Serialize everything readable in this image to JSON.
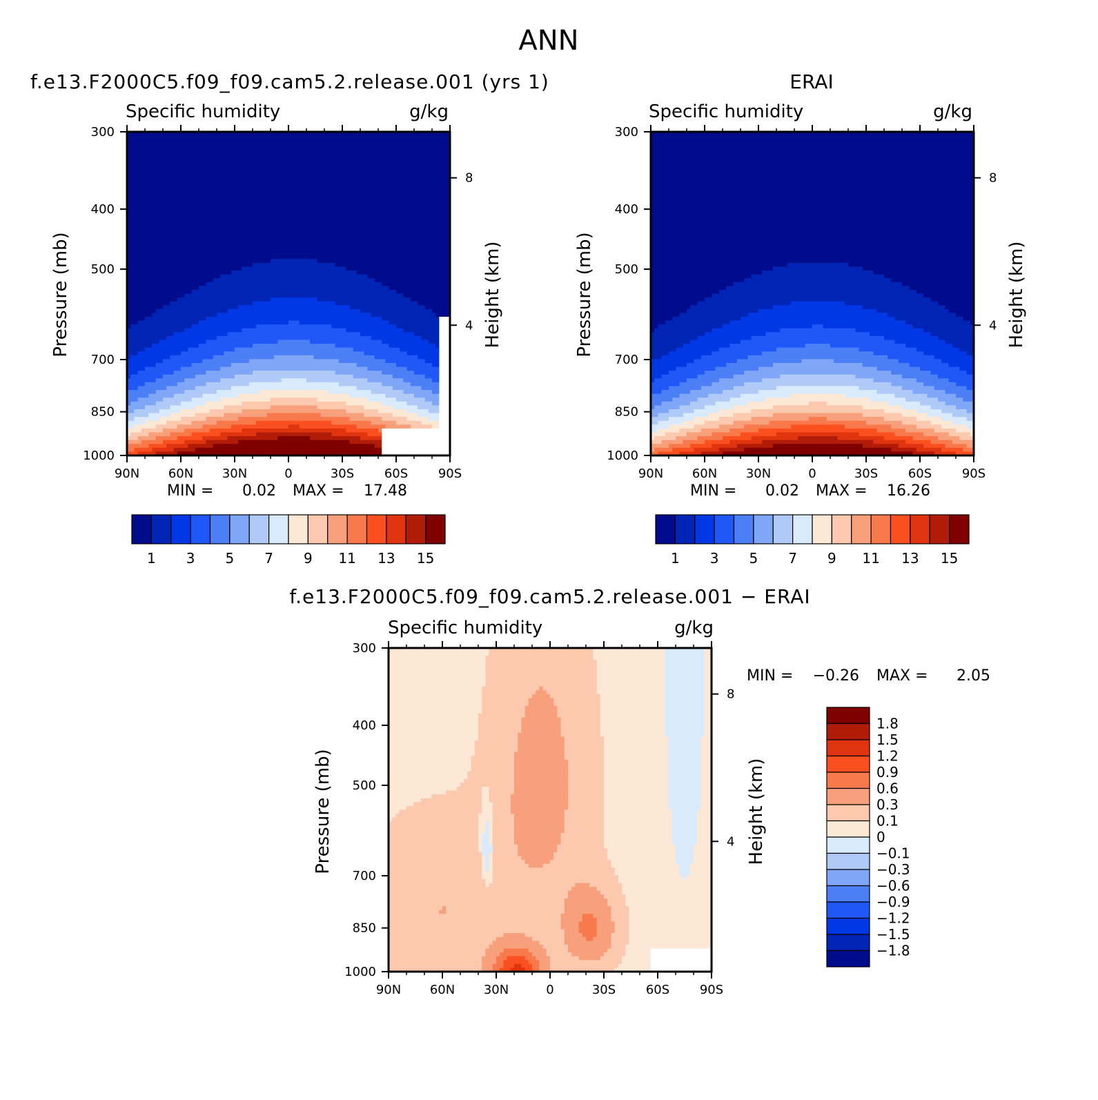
{
  "figure_title": "ANN",
  "colors": {
    "seq": [
      "#000c8c",
      "#0024b4",
      "#0038e6",
      "#2058f8",
      "#4c7ef6",
      "#80a6f8",
      "#b0caf8",
      "#d8eafc",
      "#fde8d6",
      "#fcc8ae",
      "#f8a07c",
      "#f87a4c",
      "#fa5020",
      "#e03410",
      "#b01c08",
      "#800000"
    ],
    "diff": [
      "#000c8c",
      "#0024b4",
      "#0038e6",
      "#2058f8",
      "#4c7ef6",
      "#80a6f8",
      "#b0caf8",
      "#d8eafc",
      "#fde8d6",
      "#fcc8ae",
      "#f8a07c",
      "#f87a4c",
      "#fa5020",
      "#e03410",
      "#b01c08",
      "#800000"
    ]
  },
  "chart_data": [
    {
      "type": "contour",
      "title": "f.e13.F2000C5.f09_f09.cam5.2.release.001 (yrs 1)",
      "left_label": "Specific humidity",
      "right_label": "g/kg",
      "xlabel": "",
      "ylabel": "Pressure (mb)",
      "ylabel_right": "Height (km)",
      "x_ticks": [
        "90N",
        "60N",
        "30N",
        "0",
        "30S",
        "60S",
        "90S"
      ],
      "y_ticks": [
        "300",
        "400",
        "500",
        "700",
        "850",
        "1000"
      ],
      "y_right_ticks": [
        "8",
        "4"
      ],
      "ylim": [
        1000,
        300
      ],
      "y_log": true,
      "min_label": "MIN =",
      "min_value": "0.02",
      "max_label": "MAX =",
      "max_value": "17.48",
      "levels": [
        0,
        1,
        2,
        3,
        4,
        5,
        6,
        7,
        8,
        9,
        10,
        11,
        12,
        13,
        14,
        15
      ],
      "colorbar_labels": [
        "1",
        "3",
        "5",
        "7",
        "9",
        "11",
        "13",
        "15"
      ],
      "peak_lat": -3,
      "peak_value": 17.48
    },
    {
      "type": "contour",
      "title": "ERAI",
      "left_label": "Specific humidity",
      "right_label": "g/kg",
      "xlabel": "",
      "ylabel": "Pressure (mb)",
      "ylabel_right": "Height (km)",
      "x_ticks": [
        "90N",
        "60N",
        "30N",
        "0",
        "30S",
        "60S",
        "90S"
      ],
      "y_ticks": [
        "300",
        "400",
        "500",
        "700",
        "850",
        "1000"
      ],
      "y_right_ticks": [
        "8",
        "4"
      ],
      "ylim": [
        1000,
        300
      ],
      "y_log": true,
      "min_label": "MIN =",
      "min_value": "0.02",
      "max_label": "MAX =",
      "max_value": "16.26",
      "levels": [
        0,
        1,
        2,
        3,
        4,
        5,
        6,
        7,
        8,
        9,
        10,
        11,
        12,
        13,
        14,
        15
      ],
      "colorbar_labels": [
        "1",
        "3",
        "5",
        "7",
        "9",
        "11",
        "13",
        "15"
      ],
      "peak_lat": -3,
      "peak_value": 16.26
    },
    {
      "type": "contour",
      "title": "f.e13.F2000C5.f09_f09.cam5.2.release.001 − ERAI",
      "left_label": "Specific humidity",
      "right_label": "g/kg",
      "xlabel": "",
      "ylabel": "Pressure (mb)",
      "ylabel_right": "Height (km)",
      "x_ticks": [
        "90N",
        "60N",
        "30N",
        "0",
        "30S",
        "60S",
        "90S"
      ],
      "y_ticks": [
        "300",
        "400",
        "500",
        "700",
        "850",
        "1000"
      ],
      "y_right_ticks": [
        "8",
        "4"
      ],
      "ylim": [
        1000,
        300
      ],
      "y_log": true,
      "min_label": "MIN =",
      "min_value": "−0.26",
      "max_label": "MAX =",
      "max_value": "2.05",
      "levels": [
        -1.8,
        -1.5,
        -1.2,
        -0.9,
        -0.6,
        -0.3,
        -0.1,
        0,
        0.1,
        0.3,
        0.6,
        0.9,
        1.2,
        1.5,
        1.8
      ],
      "colorbar_labels": [
        "1.8",
        "1.5",
        "1.2",
        "0.9",
        "0.6",
        "0.3",
        "0.1",
        "0",
        "−0.1",
        "−0.3",
        "−0.6",
        "−0.9",
        "−1.2",
        "−1.5",
        "−1.8"
      ]
    }
  ]
}
